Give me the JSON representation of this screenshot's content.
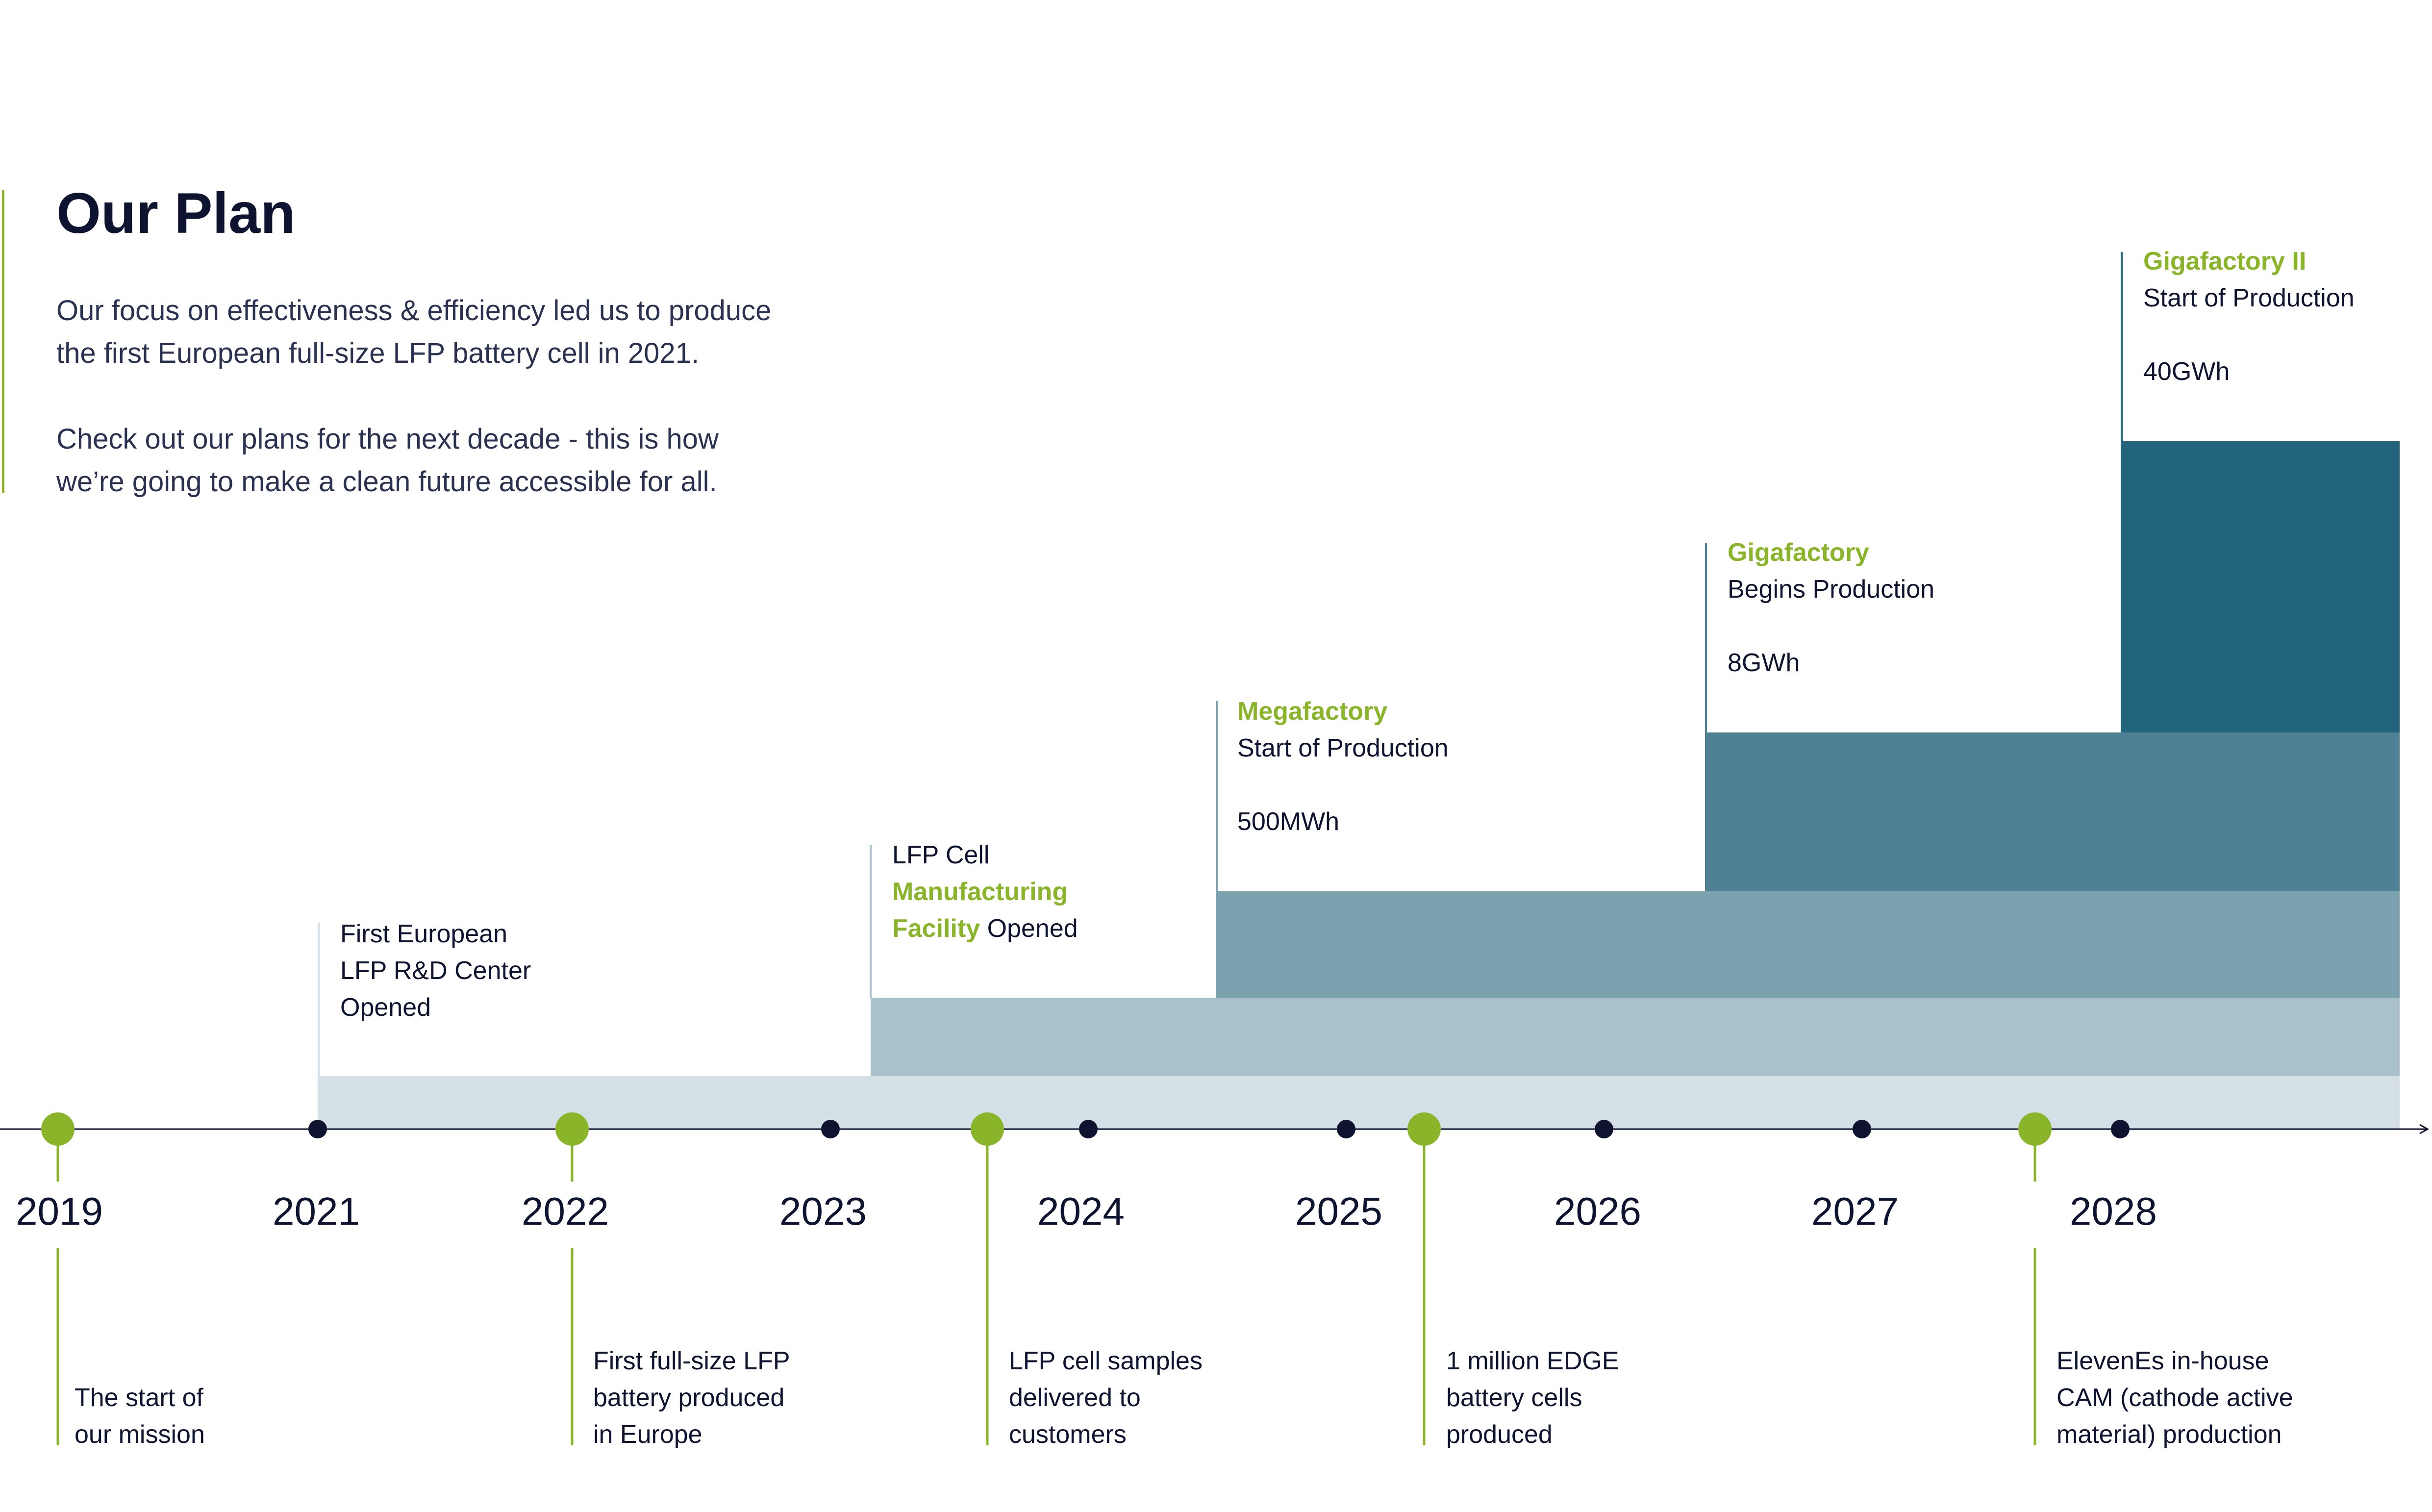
{
  "intro": {
    "title": "Our Plan",
    "paragraph_1_line_1": "Our focus on effectiveness & efficiency led us to produce",
    "paragraph_1_line_2": "the first European full-size LFP battery cell in 2021.",
    "paragraph_2_line_1": "Check out our plans for the next decade - this is how",
    "paragraph_2_line_2": "we’re going to make a clean future accessible for all."
  },
  "colors": {
    "accent_green": "#8ab52a",
    "dark_navy": "#0e1430",
    "axis": "#0e1430",
    "step_1": "#d4e0e6",
    "step_2": "#a8c1cb",
    "step_3": "#7ba1af",
    "step_4": "#4e8194",
    "step_5": "#21647b"
  },
  "years": [
    "2019",
    "2021",
    "2022",
    "2023",
    "2024",
    "2025",
    "2026",
    "2027",
    "2028"
  ],
  "capacity_milestones": [
    {
      "id": "rnd-center",
      "highlight": "",
      "lines": [
        [
          "First European",
          ""
        ],
        [
          "LFP R&D Center",
          ""
        ],
        [
          "Opened",
          ""
        ]
      ],
      "value": ""
    },
    {
      "id": "lfp-facility",
      "lines": [
        [
          "LFP Cell",
          ""
        ],
        [
          "",
          "Manufacturing"
        ],
        [
          "",
          "Facility"
        ]
      ],
      "tail": " Opened",
      "value": ""
    },
    {
      "id": "megafactory",
      "green": "Megafactory",
      "subtitle": "Start of Production",
      "value": "500MWh"
    },
    {
      "id": "gigafactory",
      "green": "Gigafactory",
      "subtitle": "Begins Production",
      "value": "8GWh"
    },
    {
      "id": "gigafactory-ii",
      "green": "Gigafactory II",
      "subtitle": "Start of Production",
      "value": "40GWh"
    }
  ],
  "events": [
    {
      "id": "start-mission",
      "lines": [
        "The start of",
        "our mission"
      ]
    },
    {
      "id": "first-full-size",
      "lines": [
        "First full-size LFP",
        "battery produced",
        "in Europe"
      ]
    },
    {
      "id": "samples",
      "lines": [
        "LFP cell samples",
        "delivered to",
        "customers"
      ]
    },
    {
      "id": "million-cells",
      "lines": [
        "1 million EDGE",
        "battery cells",
        "produced"
      ]
    },
    {
      "id": "cam-production",
      "lines": [
        "ElevenEs in-house",
        "CAM (cathode active",
        "material) production"
      ]
    }
  ]
}
